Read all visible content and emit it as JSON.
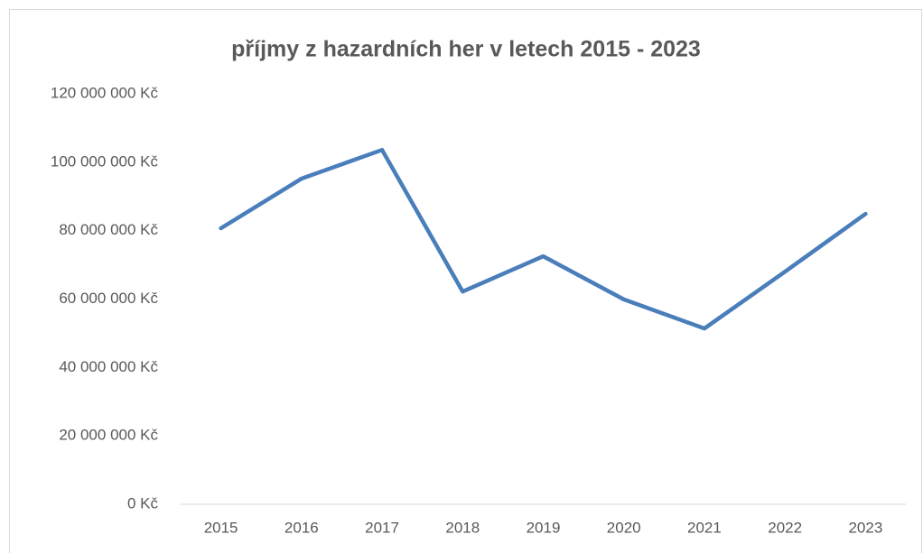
{
  "chart_data": {
    "type": "line",
    "title": "příjmy z hazardních her v letech 2015 - 2023",
    "categories": [
      "2015",
      "2016",
      "2017",
      "2018",
      "2019",
      "2020",
      "2021",
      "2022",
      "2023"
    ],
    "series": [
      {
        "color": "#4a7ebb",
        "values": [
          80700000,
          95200000,
          103600000,
          62200000,
          72500000,
          59900000,
          51400000,
          68000000,
          84900000
        ]
      }
    ],
    "ylim": [
      0,
      120000000
    ],
    "yticks": [
      {
        "value": 0,
        "label": "0 Kč"
      },
      {
        "value": 20000000,
        "label": "20 000 000 Kč"
      },
      {
        "value": 40000000,
        "label": "40 000 000 Kč"
      },
      {
        "value": 60000000,
        "label": "60 000 000 Kč"
      },
      {
        "value": 80000000,
        "label": "80 000 000 Kč"
      },
      {
        "value": 100000000,
        "label": "100 000 000 Kč"
      },
      {
        "value": 120000000,
        "label": "120 000 000 Kč"
      }
    ],
    "grid": false
  }
}
